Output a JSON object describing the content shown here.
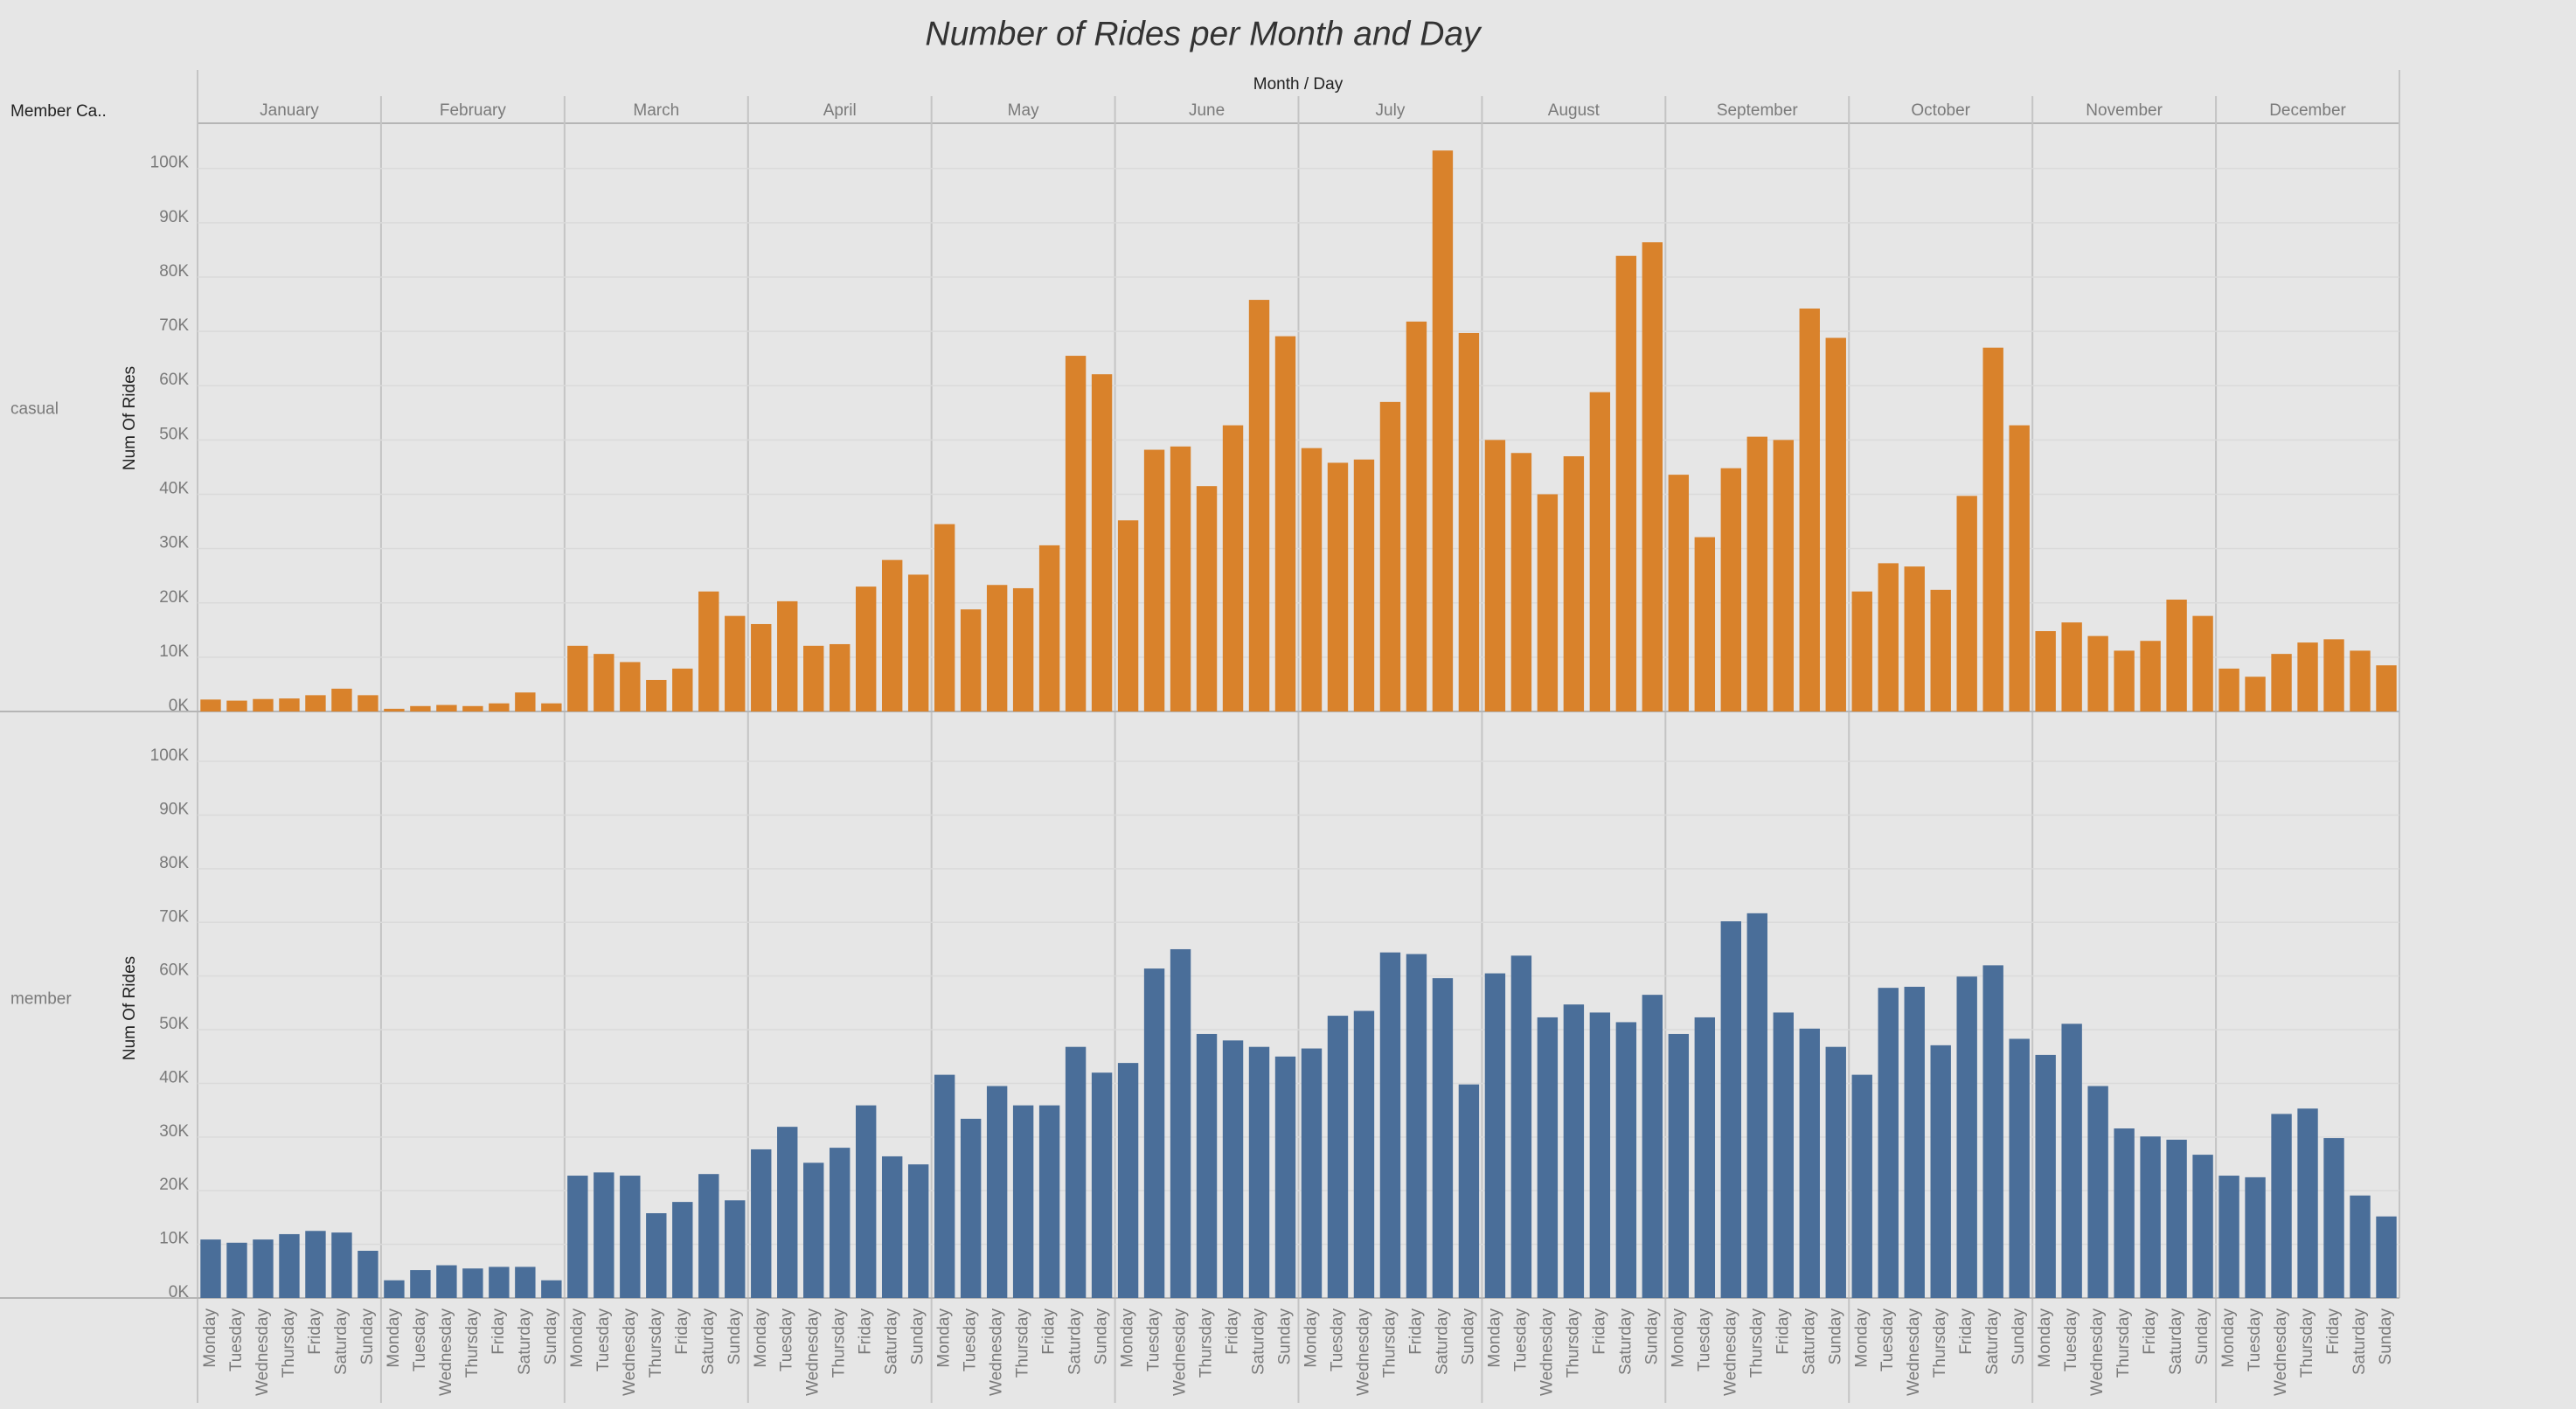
{
  "chart_data": {
    "type": "bar",
    "title": "Number of Rides per Month and Day",
    "x_label": "Month / Day",
    "y_label": "Num Of Rides",
    "row_header": "Member Ca..",
    "months": [
      "January",
      "February",
      "March",
      "April",
      "May",
      "June",
      "July",
      "August",
      "September",
      "October",
      "November",
      "December"
    ],
    "categories": [
      "Monday",
      "Tuesday",
      "Wednesday",
      "Thursday",
      "Friday",
      "Saturday",
      "Sunday",
      "Monday",
      "Tuesday",
      "Wednesday",
      "Thursday",
      "Friday",
      "Saturday",
      "Sunday",
      "Monday",
      "Tuesday",
      "Wednesday",
      "Thursday",
      "Friday",
      "Saturday",
      "Sunday",
      "Monday",
      "Tuesday",
      "Wednesday",
      "Thursday",
      "Friday",
      "Saturday",
      "Sunday",
      "Monday",
      "Tuesday",
      "Wednesday",
      "Thursday",
      "Friday",
      "Saturday",
      "Sunday",
      "Monday",
      "Tuesday",
      "Wednesday",
      "Thursday",
      "Friday",
      "Saturday",
      "Sunday",
      "Monday",
      "Tuesday",
      "Wednesday",
      "Thursday",
      "Friday",
      "Saturday",
      "Sunday",
      "Monday",
      "Tuesday",
      "Wednesday",
      "Thursday",
      "Friday",
      "Saturday",
      "Sunday",
      "Monday",
      "Tuesday",
      "Wednesday",
      "Thursday",
      "Friday",
      "Saturday",
      "Sunday",
      "Monday",
      "Tuesday",
      "Wednesday",
      "Thursday",
      "Friday",
      "Saturday",
      "Sunday",
      "Monday",
      "Tuesday",
      "Wednesday",
      "Thursday",
      "Friday",
      "Saturday",
      "Sunday",
      "Monday",
      "Tuesday",
      "Wednesday",
      "Thursday",
      "Friday",
      "Saturday",
      "Sunday"
    ],
    "series": [
      {
        "name": "casual",
        "color": "#d9822b",
        "values": [
          2200,
          2000,
          2300,
          2400,
          3000,
          4200,
          3000,
          500,
          1000,
          1200,
          1000,
          1500,
          3500,
          1500,
          12100,
          10600,
          9100,
          5800,
          7900,
          22100,
          17600,
          16100,
          20300,
          12100,
          12400,
          23000,
          27900,
          25200,
          34500,
          18800,
          23300,
          22700,
          30600,
          65500,
          62100,
          35200,
          48200,
          48800,
          41500,
          52700,
          75800,
          69100,
          48500,
          45800,
          46400,
          57000,
          71800,
          103300,
          69700,
          50000,
          47600,
          40000,
          47000,
          58800,
          83900,
          86400,
          43600,
          32100,
          44800,
          50600,
          50000,
          74200,
          68800,
          22100,
          27300,
          26700,
          22400,
          39700,
          67000,
          52700,
          14800,
          16400,
          13900,
          11200,
          13000,
          20600,
          17600,
          7900,
          6400,
          10600,
          12700,
          13300,
          11200,
          8500
        ]
      },
      {
        "name": "member",
        "color": "#4a6e99",
        "values": [
          10900,
          10300,
          10900,
          11900,
          12500,
          12200,
          8800,
          3300,
          5200,
          6100,
          5500,
          5800,
          5800,
          3300,
          22800,
          23400,
          22800,
          15800,
          17900,
          23100,
          18200,
          27700,
          31900,
          25200,
          28000,
          35900,
          26400,
          24900,
          41600,
          33400,
          39500,
          35900,
          35900,
          46800,
          42000,
          43800,
          61400,
          65000,
          49200,
          48000,
          46800,
          45000,
          46500,
          52600,
          53500,
          64400,
          64100,
          59600,
          39800,
          60500,
          63800,
          52300,
          54700,
          53200,
          51400,
          56500,
          49200,
          52300,
          70200,
          71700,
          53200,
          50200,
          46800,
          41600,
          57800,
          58000,
          47100,
          59900,
          62000,
          48300,
          45300,
          51100,
          39500,
          31600,
          30100,
          29500,
          26700,
          22800,
          22500,
          34300,
          35300,
          29800,
          19100,
          15200
        ]
      }
    ],
    "ylim": [
      0,
      108000
    ],
    "yticks": [
      {
        "value": 0,
        "label": "0K"
      },
      {
        "value": 10000,
        "label": "10K"
      },
      {
        "value": 20000,
        "label": "20K"
      },
      {
        "value": 30000,
        "label": "30K"
      },
      {
        "value": 40000,
        "label": "40K"
      },
      {
        "value": 50000,
        "label": "50K"
      },
      {
        "value": 60000,
        "label": "60K"
      },
      {
        "value": 70000,
        "label": "70K"
      },
      {
        "value": 80000,
        "label": "80K"
      },
      {
        "value": 90000,
        "label": "90K"
      },
      {
        "value": 100000,
        "label": "100K"
      }
    ],
    "grid": true
  }
}
